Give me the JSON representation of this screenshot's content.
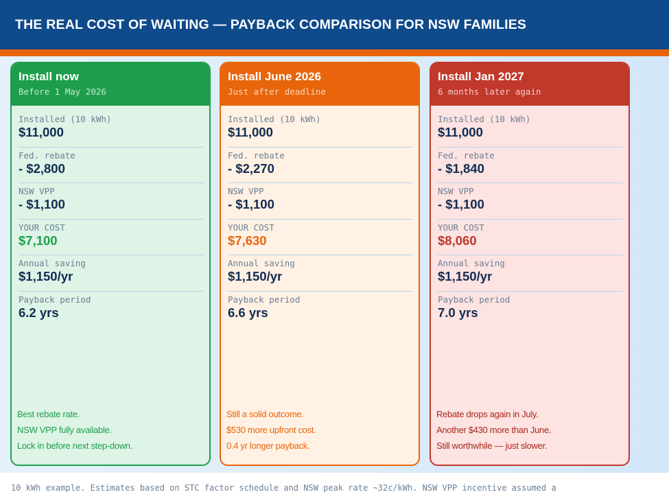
{
  "header": {
    "title": "THE REAL COST OF WAITING — PAYBACK COMPARISON FOR NSW FAMILIES"
  },
  "colors": {
    "header": "#0f4a8a",
    "accent": "#e8650c",
    "green": "#1e9e4c",
    "orange": "#e8650c",
    "red": "#c0392b"
  },
  "cards": [
    {
      "title": "Install now",
      "subtitle": "Before 1 May 2026",
      "rows": [
        {
          "label": "Installed (10 kWh)",
          "value": "$11,000"
        },
        {
          "label": "Fed. rebate",
          "value": "- $2,800"
        },
        {
          "label": "NSW VPP",
          "value": "- $1,100"
        },
        {
          "label": "YOUR COST",
          "value": "$7,100"
        },
        {
          "label": "Annual saving",
          "value": "$1,150/yr"
        },
        {
          "label": "Payback period",
          "value": "6.2 yrs"
        }
      ],
      "notes": [
        "Best rebate rate.",
        "NSW VPP fully available.",
        "Lock in before next step-down."
      ]
    },
    {
      "title": "Install June 2026",
      "subtitle": "Just after deadline",
      "rows": [
        {
          "label": "Installed (10 kWh)",
          "value": "$11,000"
        },
        {
          "label": "Fed. rebate",
          "value": "- $2,270"
        },
        {
          "label": "NSW VPP",
          "value": "- $1,100"
        },
        {
          "label": "YOUR COST",
          "value": "$7,630"
        },
        {
          "label": "Annual saving",
          "value": "$1,150/yr"
        },
        {
          "label": "Payback period",
          "value": "6.6 yrs"
        }
      ],
      "notes": [
        "Still a solid outcome.",
        "$530 more upfront cost.",
        "0.4 yr longer payback."
      ]
    },
    {
      "title": "Install Jan 2027",
      "subtitle": "6 months later again",
      "rows": [
        {
          "label": "Installed (10 kWh)",
          "value": "$11,000"
        },
        {
          "label": "Fed. rebate",
          "value": "- $1,840"
        },
        {
          "label": "NSW VPP",
          "value": "- $1,100"
        },
        {
          "label": "YOUR COST",
          "value": "$8,060"
        },
        {
          "label": "Annual saving",
          "value": "$1,150/yr"
        },
        {
          "label": "Payback period",
          "value": "7.0 yrs"
        }
      ],
      "notes": [
        "Rebate drops again in July.",
        "Another $430 more than June.",
        "Still worthwhile — just slower."
      ]
    }
  ],
  "footer": {
    "text": "10 kWh example. Estimates based on STC factor schedule and NSW peak rate ~32c/kWh. NSW VPP incentive assumed a"
  }
}
